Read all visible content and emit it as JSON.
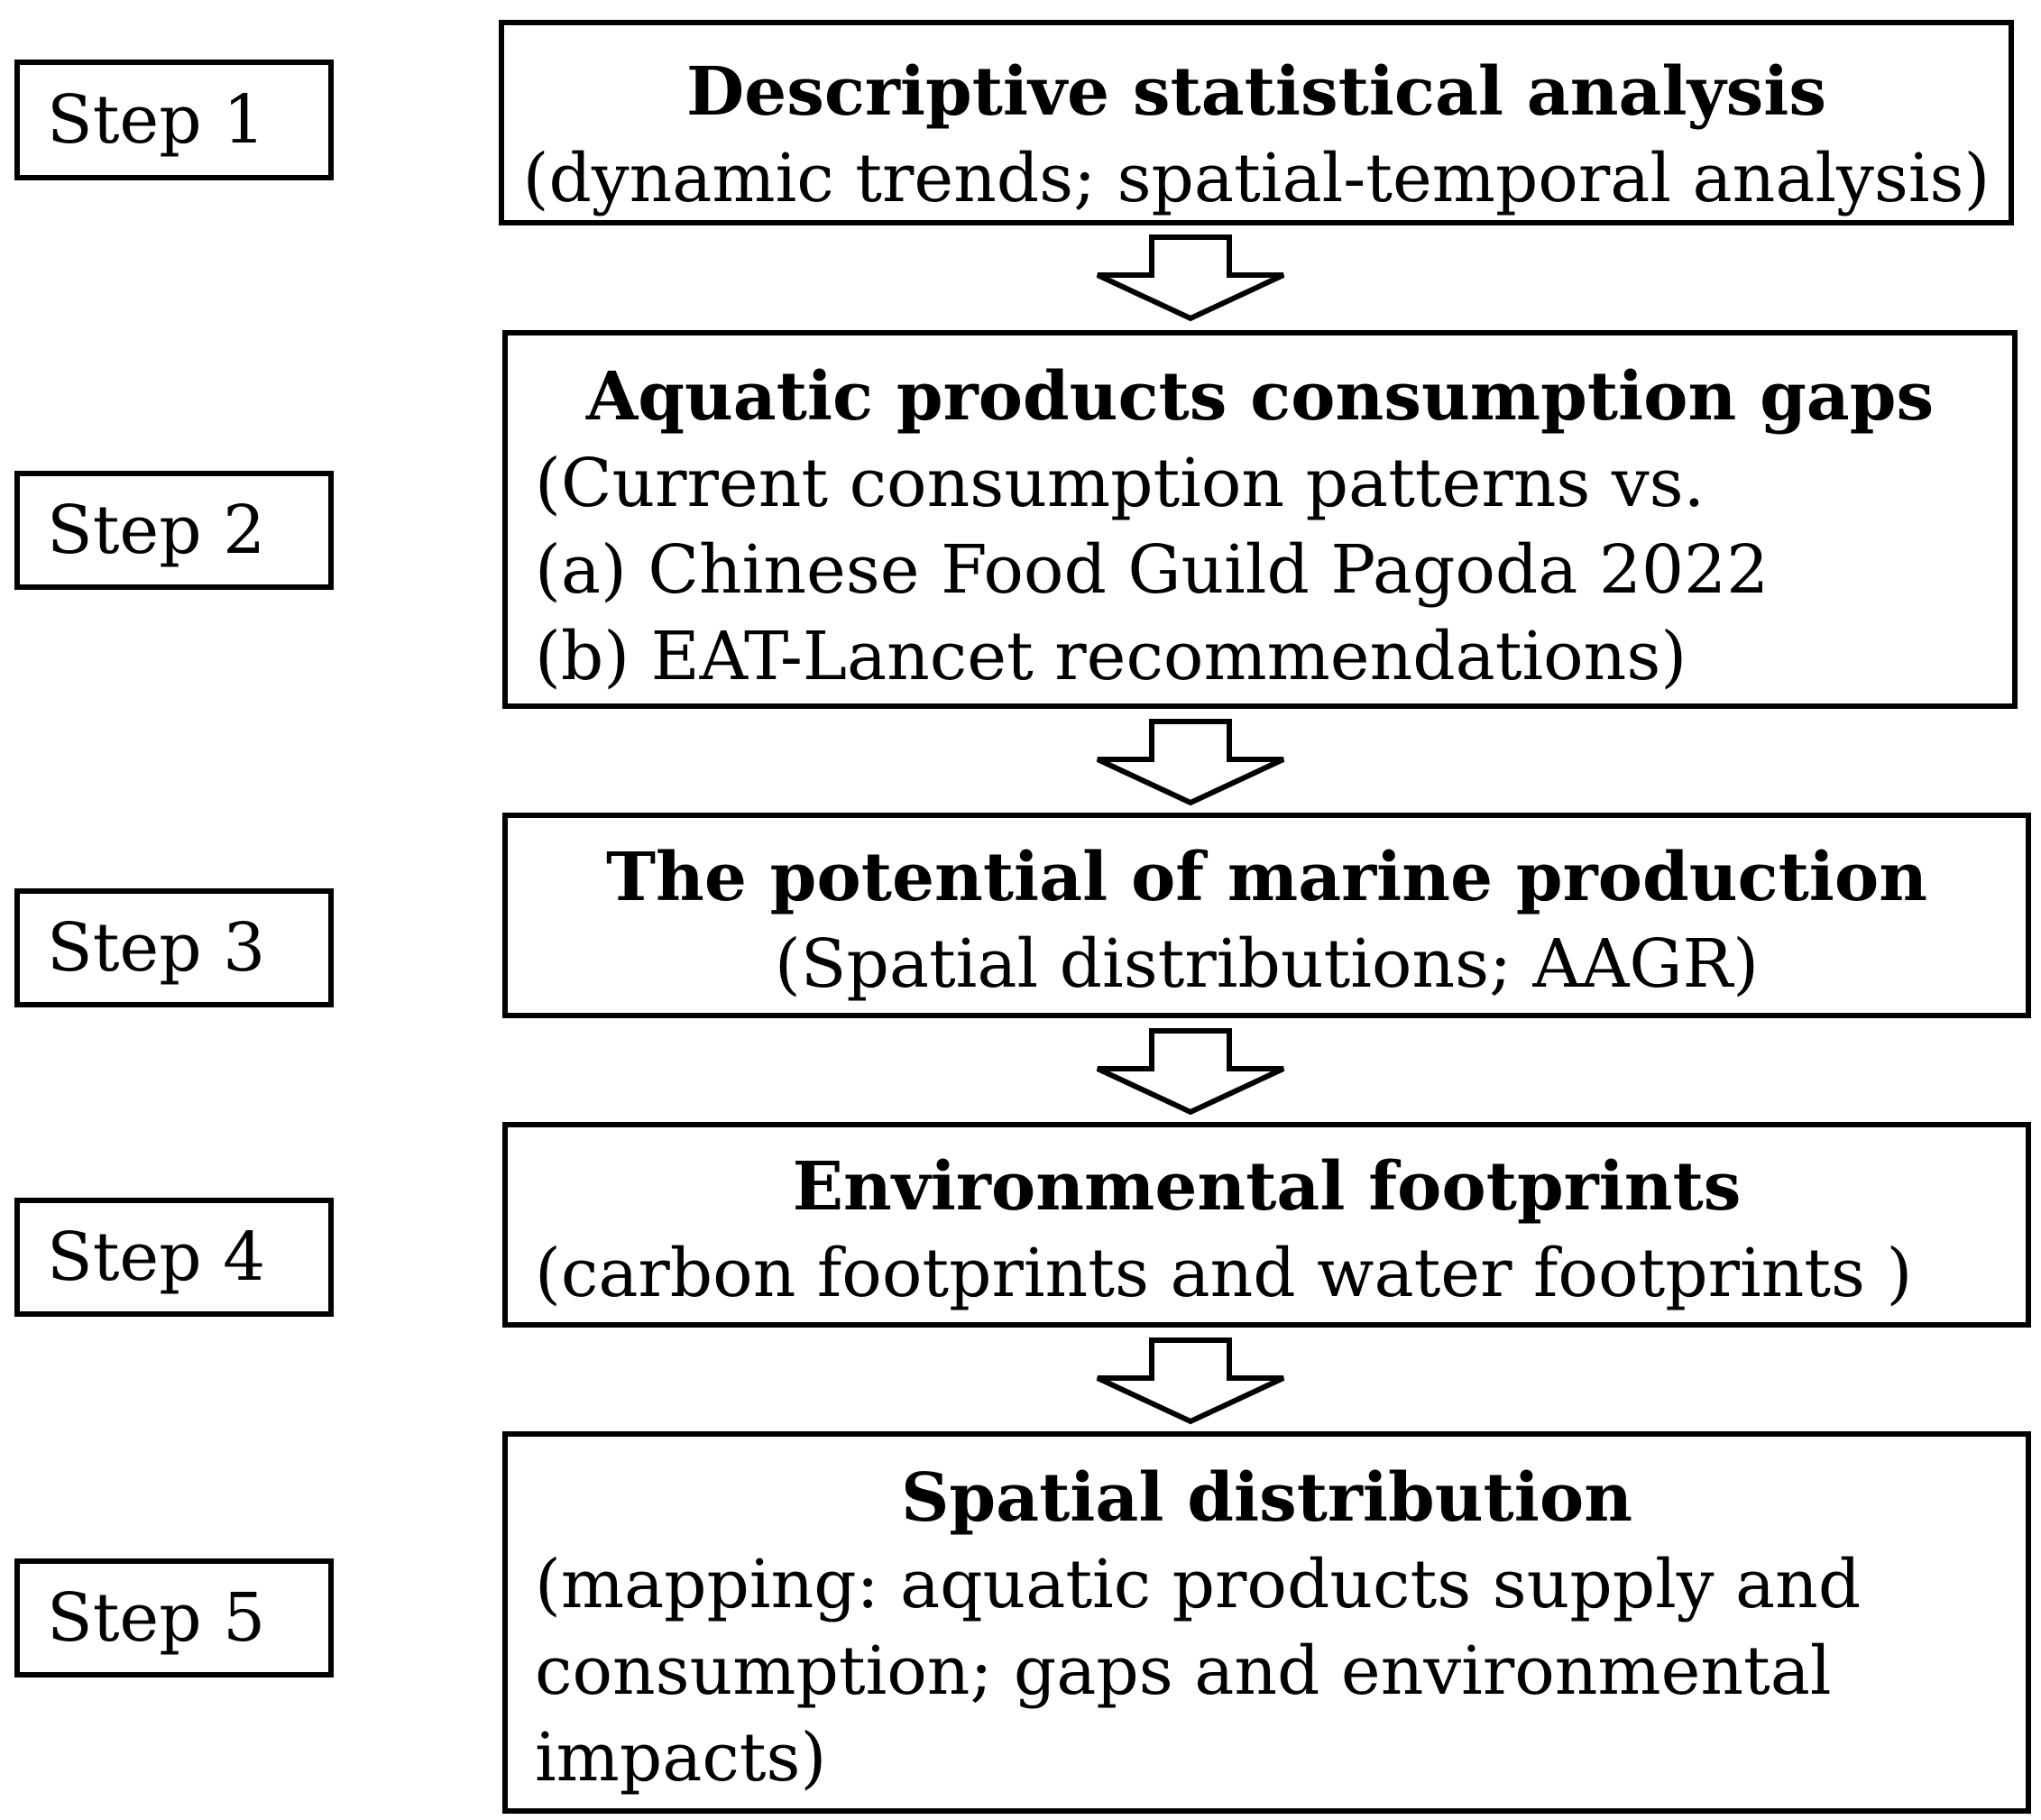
{
  "steps": [
    {
      "label": "Step 1"
    },
    {
      "label": "Step 2"
    },
    {
      "label": "Step 3"
    },
    {
      "label": "Step 4"
    },
    {
      "label": "Step 5"
    }
  ],
  "boxes": [
    {
      "title": "Descriptive statistical analysis",
      "lines": [
        "(dynamic trends; spatial-temporal analysis)"
      ]
    },
    {
      "title": "Aquatic products consumption gaps",
      "lines": [
        "(Current consumption patterns vs.",
        "(a) Chinese Food Guild Pagoda 2022",
        "(b) EAT-Lancet recommendations)"
      ]
    },
    {
      "title": "The potential of marine production",
      "lines": [
        "(Spatial distributions; AAGR)"
      ]
    },
    {
      "title": "Environmental footprints",
      "lines": [
        "(carbon footprints and water footprints )"
      ]
    },
    {
      "title": "Spatial distribution",
      "lines": [
        "(mapping: aquatic products supply and",
        "consumption; gaps and environmental",
        "impacts)"
      ]
    }
  ]
}
